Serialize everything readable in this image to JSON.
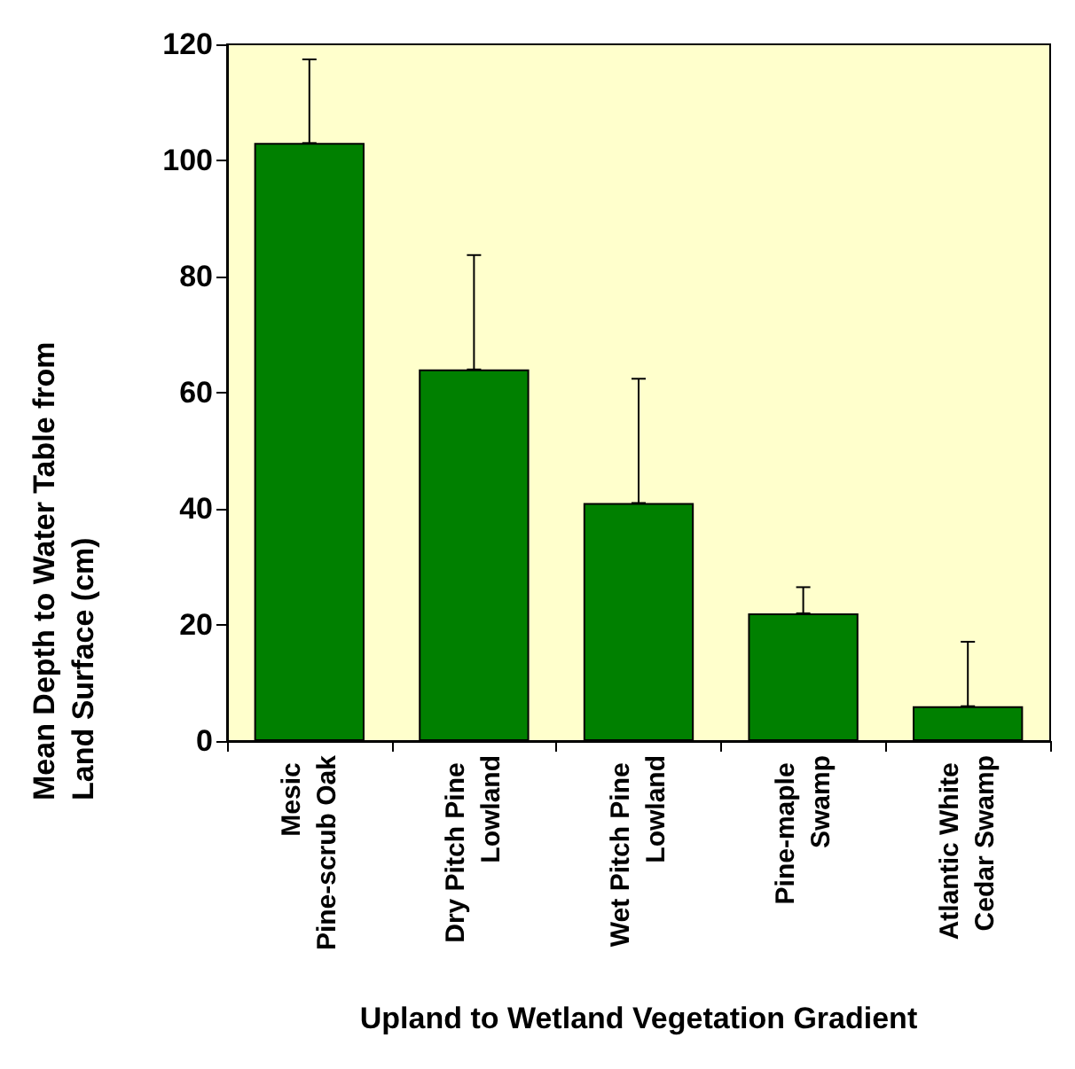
{
  "chart_data": {
    "type": "bar",
    "xlabel": "Upland to Wetland Vegetation Gradient",
    "ylabel": "Mean Depth to Water Table from Land Surface (cm)",
    "categories": [
      "Mesic Pine-scrub Oak",
      "Dry Pitch Pine Lowland",
      "Wet Pitch Pine Lowland",
      "Pine-maple Swamp",
      "Atlantic White Cedar Swamp"
    ],
    "values": [
      103,
      64,
      41,
      22,
      6
    ],
    "errors": [
      [
        103,
        117.4
      ],
      [
        64,
        83.7
      ],
      [
        41,
        62.4
      ],
      [
        22,
        26.5
      ],
      [
        6,
        17.1
      ]
    ],
    "color": "#008000",
    "ylim": [
      0,
      120
    ],
    "yticks": [
      0,
      20,
      40,
      60,
      80,
      100,
      120
    ],
    "grid": false
  }
}
